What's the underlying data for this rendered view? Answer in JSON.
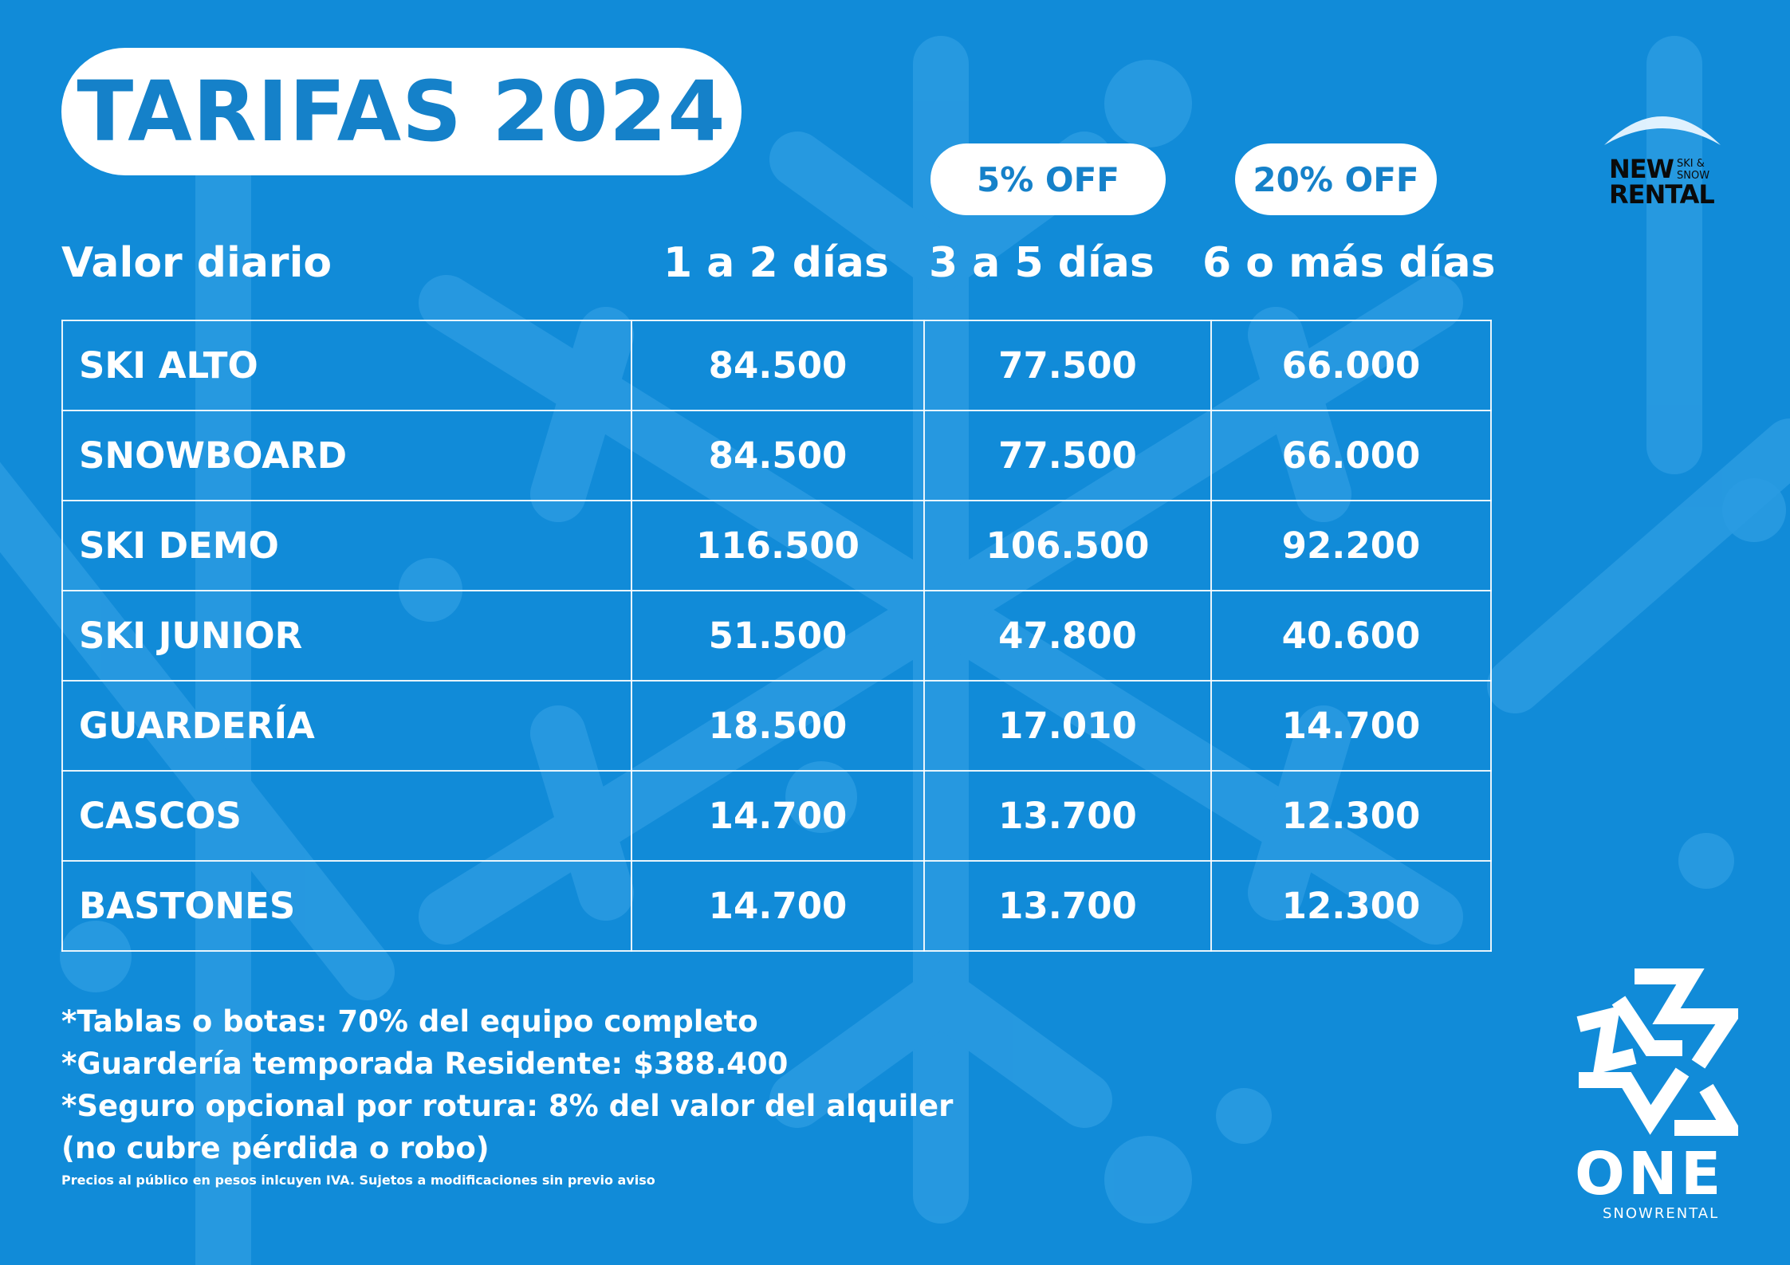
{
  "title": "TARIFAS 2024",
  "discounts": {
    "col2": "5% OFF",
    "col3": "20% OFF"
  },
  "headers": {
    "label": "Valor diario",
    "col1": "1 a 2 días",
    "col2": "3 a 5 días",
    "col3": "6 o más días"
  },
  "rows": [
    {
      "item": "SKI ALTO",
      "col1": "84.500",
      "col2": "77.500",
      "col3": "66.000"
    },
    {
      "item": "SNOWBOARD",
      "col1": "84.500",
      "col2": "77.500",
      "col3": "66.000"
    },
    {
      "item": "SKI DEMO",
      "col1": "116.500",
      "col2": "106.500",
      "col3": "92.200"
    },
    {
      "item": "SKI JUNIOR",
      "col1": "51.500",
      "col2": "47.800",
      "col3": "40.600"
    },
    {
      "item": "GUARDERÍA",
      "col1": "18.500",
      "col2": "17.010",
      "col3": "14.700"
    },
    {
      "item": "CASCOS",
      "col1": "14.700",
      "col2": "13.700",
      "col3": "12.300"
    },
    {
      "item": "BASTONES",
      "col1": "14.700",
      "col2": "13.700",
      "col3": "12.300"
    }
  ],
  "notes": [
    "*Tablas o botas: 70% del equipo completo",
    "*Guardería temporada Residente: $388.400",
    "*Seguro opcional por rotura: 8% del valor del alquiler",
    "(no cubre pérdida o robo)"
  ],
  "fine_print": "Precios al público en pesos inlcuyen IVA. Sujetos a modificaciones sin previo aviso",
  "brand_new": {
    "big": "NEW RENTAL",
    "small": "SKI & SNOW"
  },
  "brand_one": {
    "name": "ONE",
    "sub": "SNOWRENTAL"
  },
  "colors": {
    "background": "#118bd8",
    "accent": "#1581c9",
    "text": "#ffffff"
  }
}
